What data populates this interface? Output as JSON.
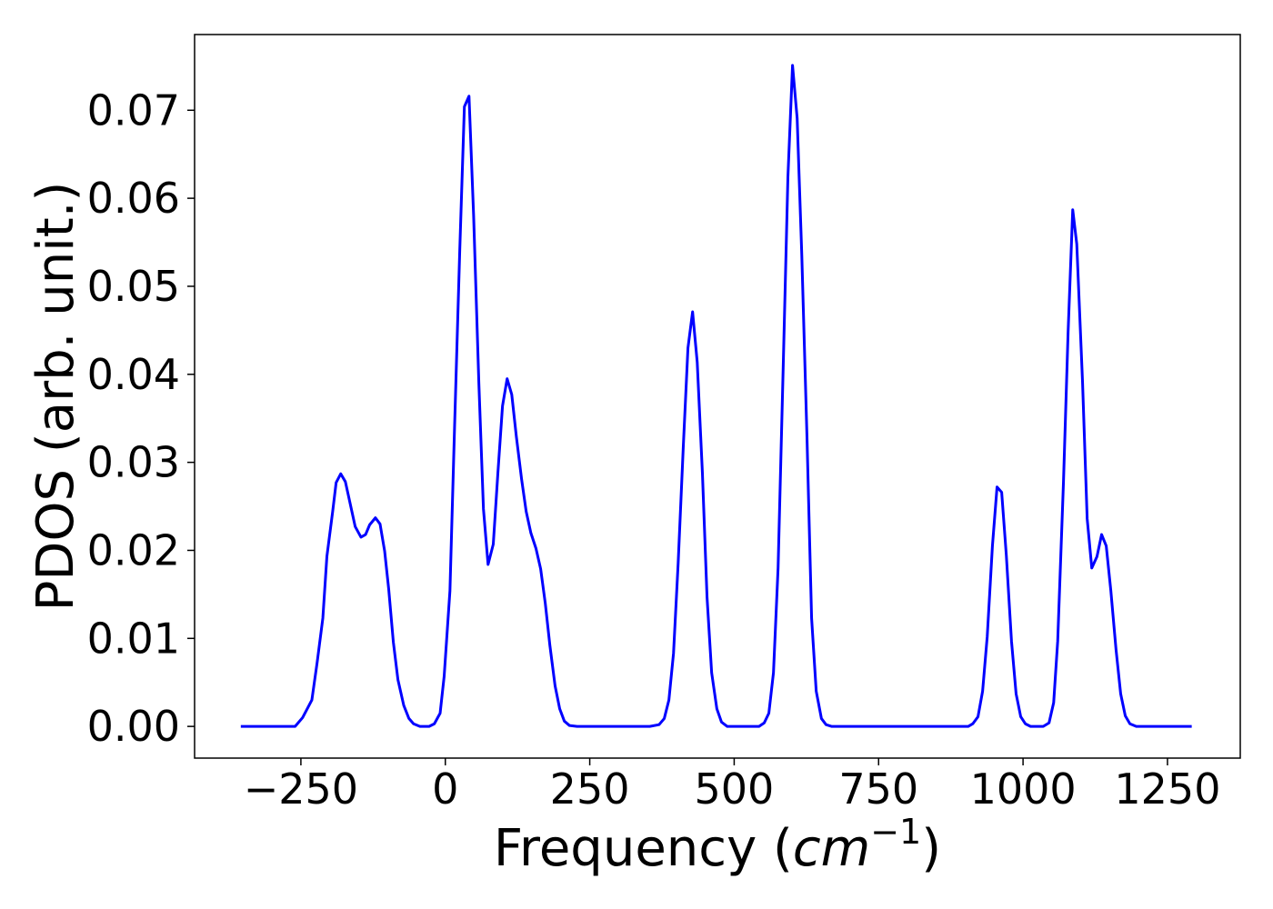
{
  "chart_data": {
    "type": "line",
    "xlabel": [
      "Frequency (",
      "cm",
      "−1",
      ")"
    ],
    "ylabel": "PDOS (arb. unit.)",
    "xlim": [
      -434,
      1376
    ],
    "ylim": [
      -0.0036,
      0.0786
    ],
    "xticks": [
      {
        "value": -250,
        "label": "−250"
      },
      0,
      250,
      500,
      750,
      1000,
      1250
    ],
    "yticks": [
      {
        "value": 0,
        "label": "0.00"
      },
      {
        "value": 0.01,
        "label": "0.01"
      },
      {
        "value": 0.02,
        "label": "0.02"
      },
      {
        "value": 0.03,
        "label": "0.03"
      },
      {
        "value": 0.04,
        "label": "0.04"
      },
      {
        "value": 0.05,
        "label": "0.05"
      },
      {
        "value": 0.06,
        "label": "0.06"
      },
      {
        "value": 0.07,
        "label": "0.07"
      }
    ],
    "grid": false,
    "series": [
      {
        "color": "#0000ff",
        "x": [
          -354,
          -260,
          -247,
          -231,
          -222,
          -212,
          -205,
          -195,
          -189,
          -181,
          -173,
          -164,
          -156,
          -146,
          -138,
          -131,
          -121,
          -113,
          -105,
          -98,
          -90,
          -82,
          -72,
          -63,
          -55,
          -44,
          -28,
          -19,
          -9,
          -2,
          8,
          16,
          25,
          33,
          41,
          49,
          58,
          66,
          74,
          83,
          91,
          99,
          107,
          115,
          123,
          132,
          140,
          148,
          157,
          165,
          173,
          181,
          190,
          198,
          206,
          215,
          228,
          354,
          370,
          379,
          387,
          395,
          403,
          412,
          420,
          428,
          436,
          445,
          453,
          461,
          470,
          478,
          488,
          543,
          552,
          560,
          568,
          576,
          585,
          593,
          601,
          609,
          617,
          626,
          634,
          642,
          651,
          659,
          669,
          905,
          913,
          922,
          930,
          938,
          947,
          955,
          963,
          971,
          980,
          988,
          996,
          1004,
          1013,
          1035,
          1045,
          1053,
          1060,
          1070,
          1078,
          1086,
          1093,
          1103,
          1111,
          1119,
          1128,
          1136,
          1144,
          1152,
          1161,
          1169,
          1177,
          1185,
          1196,
          1292
        ],
        "values": [
          0,
          0,
          0.001,
          0.003,
          0.0072,
          0.0123,
          0.0193,
          0.0244,
          0.0277,
          0.0287,
          0.0278,
          0.0251,
          0.0227,
          0.0215,
          0.0218,
          0.0229,
          0.0237,
          0.023,
          0.0199,
          0.0156,
          0.0096,
          0.0053,
          0.0024,
          0.0009,
          0.0003,
          0,
          0,
          0.0003,
          0.0015,
          0.0057,
          0.0154,
          0.034,
          0.0541,
          0.0704,
          0.0716,
          0.058,
          0.0391,
          0.0247,
          0.0184,
          0.0207,
          0.0288,
          0.0364,
          0.0395,
          0.0377,
          0.0329,
          0.0281,
          0.0244,
          0.022,
          0.0202,
          0.0179,
          0.014,
          0.0092,
          0.0046,
          0.002,
          0.0006,
          0.0001,
          0,
          0,
          0.0002,
          0.0009,
          0.003,
          0.0083,
          0.0185,
          0.0319,
          0.043,
          0.0471,
          0.0414,
          0.0288,
          0.0147,
          0.0061,
          0.002,
          0.0005,
          0,
          0,
          0.0004,
          0.0015,
          0.0061,
          0.018,
          0.0412,
          0.0624,
          0.0751,
          0.0691,
          0.0536,
          0.0329,
          0.0123,
          0.004,
          0.0009,
          0.0002,
          0,
          0,
          0.0003,
          0.0011,
          0.004,
          0.0102,
          0.0205,
          0.0272,
          0.0266,
          0.0195,
          0.0097,
          0.0037,
          0.0011,
          0.0003,
          0,
          0,
          0.0004,
          0.0027,
          0.0097,
          0.0278,
          0.0448,
          0.0587,
          0.0548,
          0.0391,
          0.0236,
          0.018,
          0.0193,
          0.0218,
          0.0205,
          0.0154,
          0.0087,
          0.0037,
          0.0012,
          0.0003,
          0,
          0
        ]
      }
    ]
  }
}
